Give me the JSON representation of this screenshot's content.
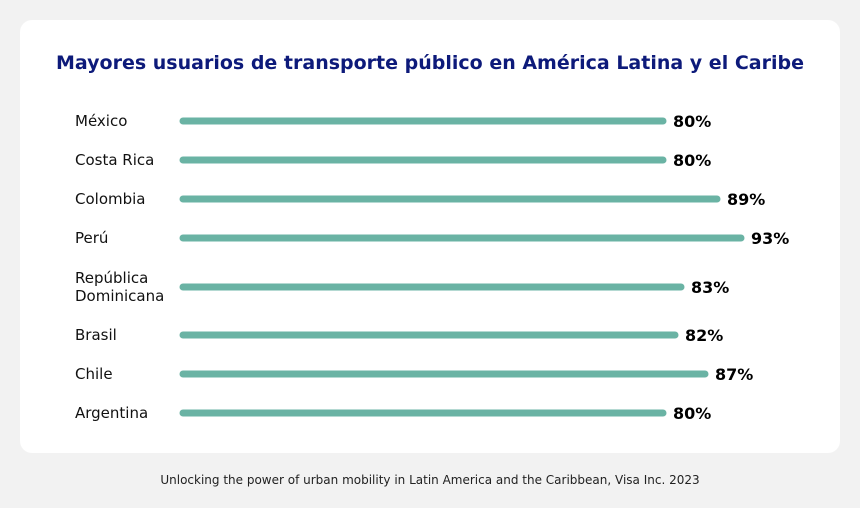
{
  "chart_data": {
    "type": "bar",
    "orientation": "horizontal",
    "title": "Mayores usuarios de transporte público en América Latina y el Caribe",
    "categories": [
      [
        "México"
      ],
      [
        "Costa Rica"
      ],
      [
        "Colombia"
      ],
      [
        "Perú"
      ],
      [
        "República",
        "Dominicana"
      ],
      [
        "Brasil"
      ],
      [
        "Chile"
      ],
      [
        "Argentina"
      ]
    ],
    "values": [
      80,
      80,
      89,
      93,
      83,
      82,
      87,
      80
    ],
    "value_labels": [
      "80%",
      "80%",
      "89%",
      "93%",
      "83%",
      "82%",
      "87%",
      "80%"
    ],
    "unit": "%",
    "xlabel": "",
    "ylabel": "",
    "bar_color": "#6ab3a4",
    "title_color": "#0d1a7a"
  },
  "footer": {
    "source": "Unlocking the power of urban mobility in Latin America and the Caribbean, Visa Inc. 2023"
  }
}
